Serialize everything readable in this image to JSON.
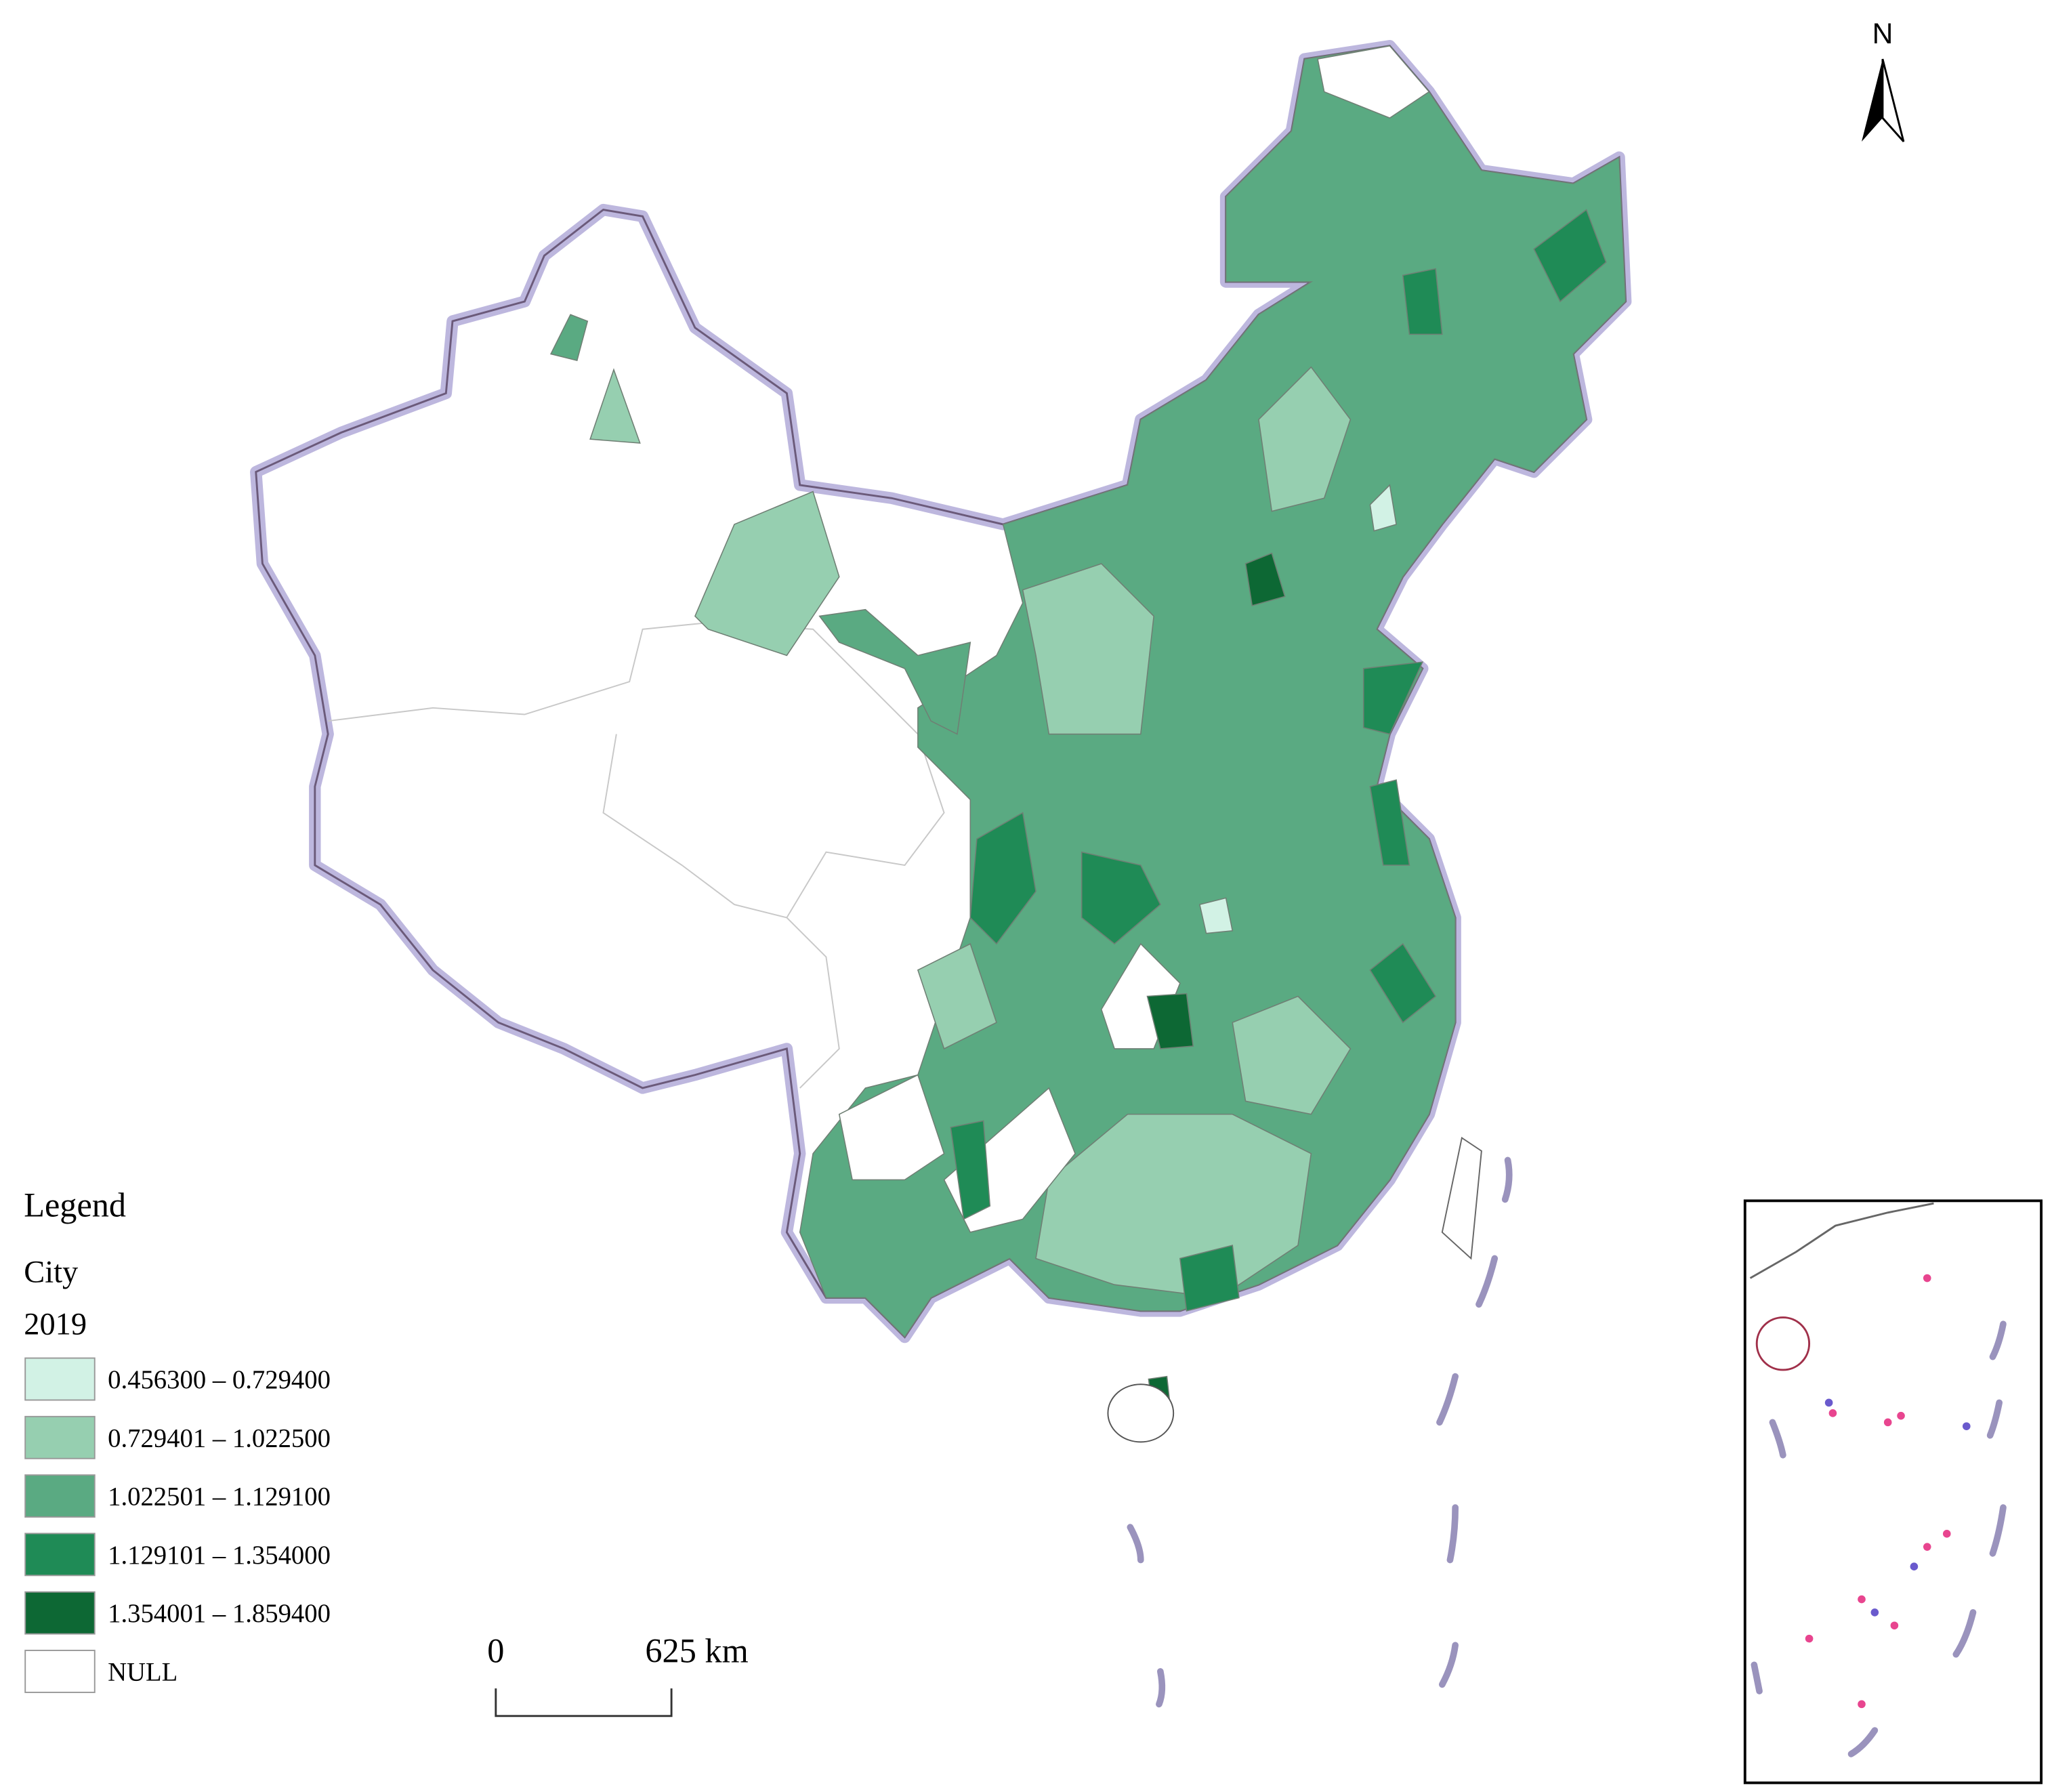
{
  "north_arrow": "N",
  "legend": {
    "title": "Legend",
    "layer": "City",
    "year": "2019",
    "classes": [
      {
        "label": "0.456300 – 0.729400",
        "color": "#d2f2e5"
      },
      {
        "label": "0.729401 – 1.022500",
        "color": "#96cfb0"
      },
      {
        "label": "1.022501 – 1.129100",
        "color": "#5aaa82"
      },
      {
        "label": "1.129101 – 1.354000",
        "color": "#1f8b56"
      },
      {
        "label": "1.354001 – 1.859400",
        "color": "#0d6834"
      },
      {
        "label": "NULL",
        "color": "#ffffff"
      }
    ]
  },
  "scale_bar": {
    "start": "0",
    "end": "625 km"
  }
}
